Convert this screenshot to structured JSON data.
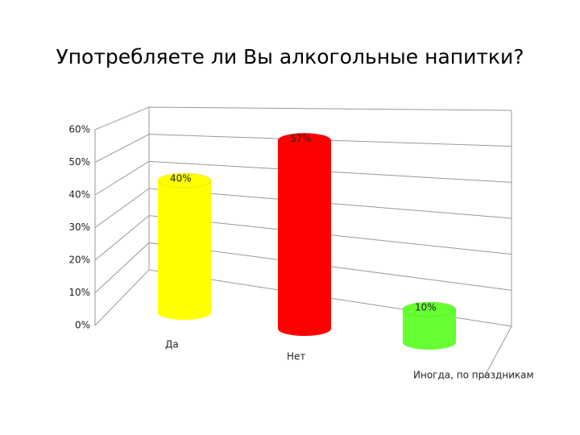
{
  "chart_data": {
    "type": "bar3d",
    "title": "Употребляете ли Вы алкогольные напитки?",
    "categories": [
      "Да",
      "Нет",
      "Иногда, по праздникам"
    ],
    "values": [
      40,
      57,
      10
    ],
    "value_labels": [
      "40%",
      "57%",
      "10%"
    ],
    "colors": [
      "#ffff00",
      "#ff0000",
      "#66ff33"
    ],
    "ylim": [
      0,
      60
    ],
    "yticks": [
      {
        "value": 0,
        "label": "0%"
      },
      {
        "value": 10,
        "label": "10%"
      },
      {
        "value": 20,
        "label": "20%"
      },
      {
        "value": 30,
        "label": "30%"
      },
      {
        "value": 40,
        "label": "40%"
      },
      {
        "value": 50,
        "label": "50%"
      },
      {
        "value": 60,
        "label": "60%"
      }
    ],
    "grid": true
  }
}
